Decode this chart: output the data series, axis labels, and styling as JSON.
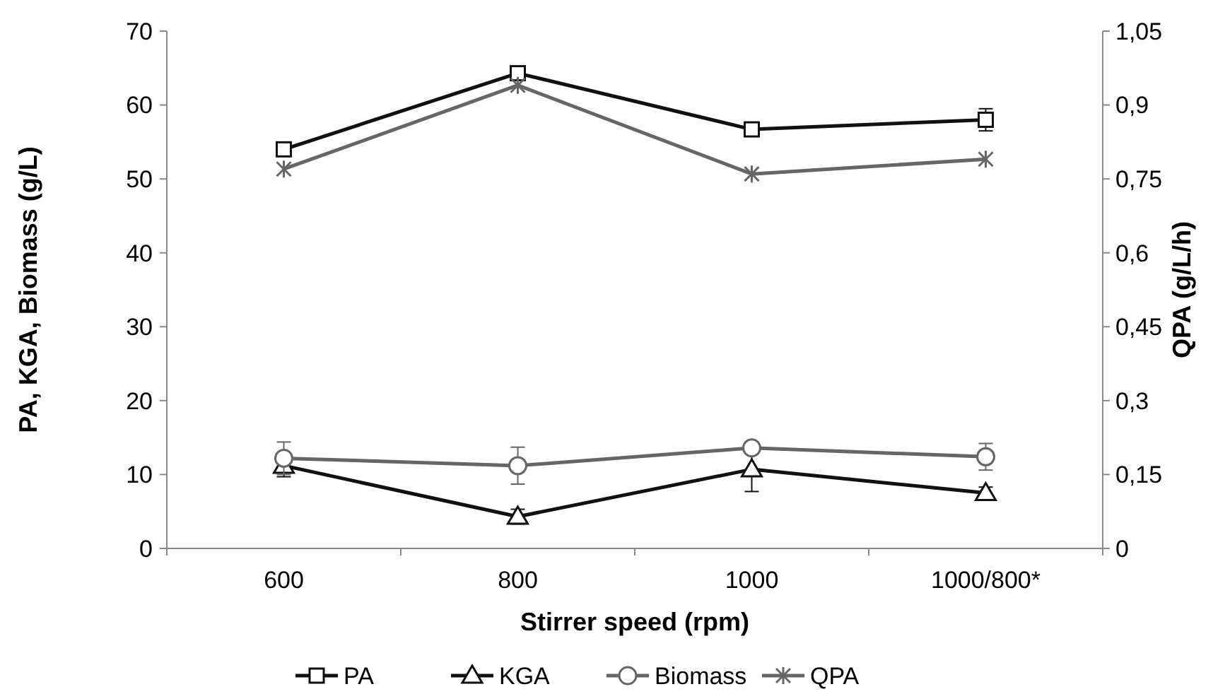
{
  "chart_data": {
    "type": "line",
    "xlabel": "Stirrer speed (rpm)",
    "ylabel": "PA, KGA, Biomass (g/L)",
    "y2label": "QPA (g/L/h)",
    "categories": [
      "600",
      "800",
      "1000",
      "1000/800*"
    ],
    "ylim": [
      0,
      70
    ],
    "yticks": [
      0,
      10,
      20,
      30,
      40,
      50,
      60,
      70
    ],
    "y2lim": [
      0,
      1.05
    ],
    "y2ticks": [
      0,
      {
        "value": 0.15,
        "label": "0,15"
      },
      {
        "value": 0.3,
        "label": "0,3"
      },
      {
        "value": 0.45,
        "label": "0,45"
      },
      {
        "value": 0.6,
        "label": "0,6"
      },
      {
        "value": 0.75,
        "label": "0,75"
      },
      {
        "value": 0.9,
        "label": "0,9"
      },
      {
        "value": 1.05,
        "label": "1,05"
      }
    ],
    "grid": false,
    "legend": "bottom",
    "series": [
      {
        "name": "PA",
        "color": "#111111",
        "marker": "square",
        "values": [
          54,
          64.3,
          56.7,
          58
        ],
        "errors": [
          null,
          null,
          null,
          1.5
        ]
      },
      {
        "name": "KGA",
        "color": "#111111",
        "marker": "triangle",
        "values": [
          11.2,
          4.3,
          10.7,
          7.5
        ],
        "errors": [
          1.5,
          1,
          3,
          0.8
        ]
      },
      {
        "name": "Biomass",
        "color": "#666666",
        "marker": "circle",
        "values": [
          12.2,
          11.2,
          13.6,
          12.4
        ],
        "errors": [
          2.2,
          2.5,
          0.8,
          1.8
        ]
      },
      {
        "name": "QPA",
        "color": "#666666",
        "marker": "cross",
        "axis": "y2",
        "values": [
          0.77,
          0.94,
          0.76,
          0.79
        ]
      }
    ]
  }
}
